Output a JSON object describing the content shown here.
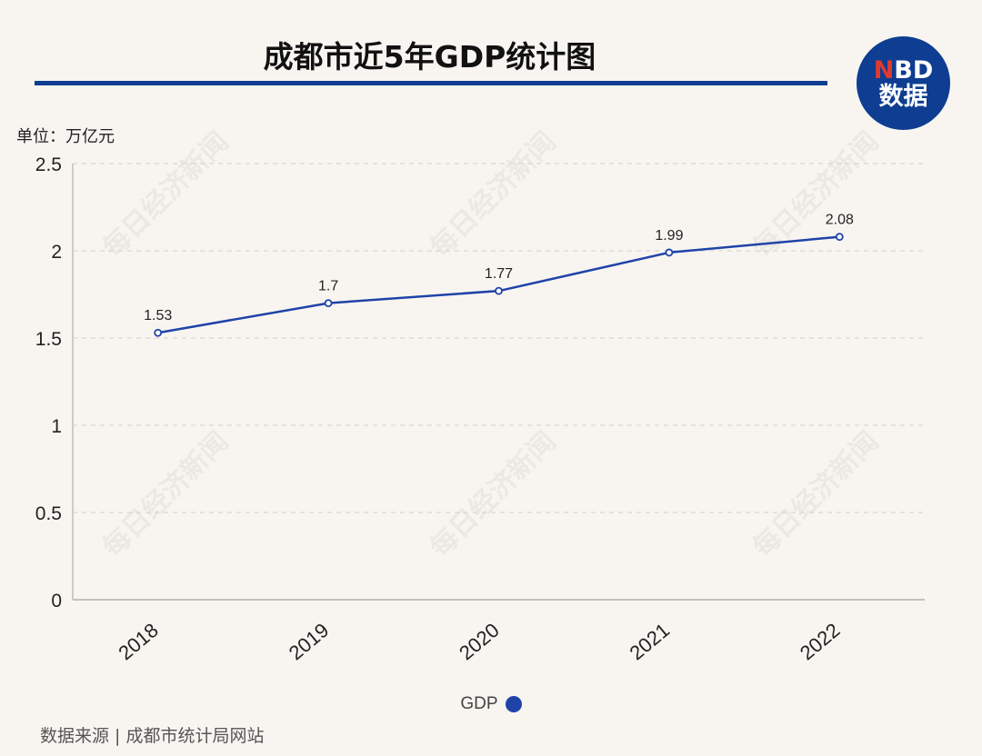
{
  "header": {
    "title": "成都市近5年GDP统计图"
  },
  "logo": {
    "line1_prefix": "N",
    "line1_rest": "BD",
    "line2": "数据"
  },
  "unit_label": "单位：万亿元",
  "watermark": "每日经济新闻",
  "source": "数据来源 | 成都市统计局网站",
  "colors": {
    "line": "#1f43a8",
    "title_rule": "#0e3d91",
    "background": "#f8f5f1"
  },
  "chart_data": {
    "type": "line",
    "title": "成都市近5年GDP统计图",
    "ylabel": "单位：万亿元",
    "xlabel": "",
    "categories": [
      "2018",
      "2019",
      "2020",
      "2021",
      "2022"
    ],
    "series": [
      {
        "name": "GDP",
        "values": [
          1.53,
          1.7,
          1.77,
          1.99,
          2.08
        ],
        "labels": [
          "1.53",
          "1.7",
          "1.77",
          "1.99",
          "2.08"
        ]
      }
    ],
    "yticks": [
      "0",
      "0.5",
      "1",
      "1.5",
      "2",
      "2.5"
    ],
    "ylim": [
      0,
      2.5
    ],
    "grid": true,
    "legend": "bottom-center"
  }
}
